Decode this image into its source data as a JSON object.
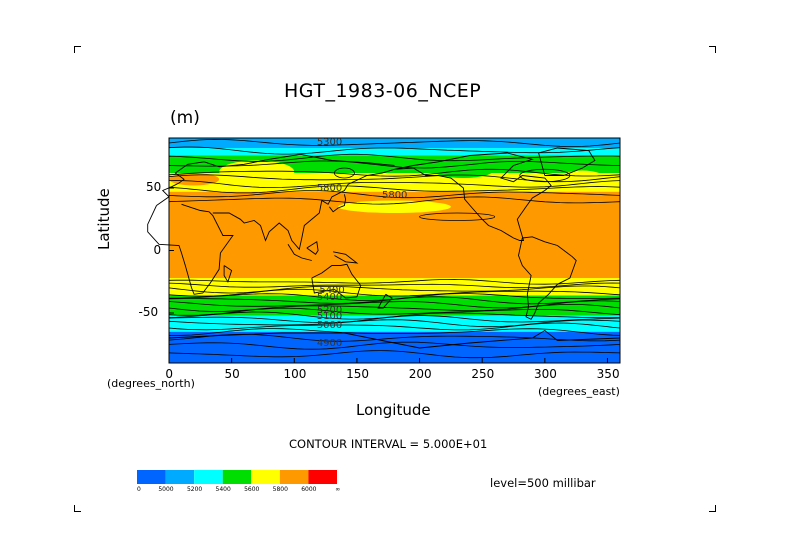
{
  "chart_data": {
    "type": "heatmap",
    "title": "HGT_1983-06_NCEP",
    "units": "(m)",
    "xlabel": "Longitude",
    "ylabel": "Latitude",
    "x_unit_label": "(degrees_east)",
    "y_unit_label": "(degrees_north)",
    "xlim": [
      0,
      360
    ],
    "ylim": [
      -90,
      90
    ],
    "x_ticks": [
      "0",
      "50",
      "100",
      "150",
      "200",
      "250",
      "300",
      "350"
    ],
    "y_ticks": [
      "50",
      "0",
      "-50"
    ],
    "contour_interval_text": "CONTOUR INTERVAL = 5.000E+01",
    "level_text": "level=500 millibar",
    "contour_labels": [
      "5300",
      "5800",
      "5800",
      "5400",
      "5400",
      "5200",
      "5100",
      "5000",
      "4900"
    ],
    "legend": {
      "labels": [
        "0",
        "5000",
        "5200",
        "5400",
        "5600",
        "5800",
        "6000",
        "∞"
      ],
      "colors": [
        "#0064ff",
        "#00aaff",
        "#00ffff",
        "#00dd00",
        "#ffff00",
        "#ff9900",
        "#ff0000"
      ]
    },
    "bands": [
      {
        "lat_from": 90,
        "lat_to": 82,
        "color_index": 1
      },
      {
        "lat_from": 82,
        "lat_to": 76,
        "color_index": 2
      },
      {
        "lat_from": 76,
        "lat_to": 62,
        "color_index": 3
      },
      {
        "lat_from": 62,
        "lat_to": 47,
        "color_index": 4
      },
      {
        "lat_from": 47,
        "lat_to": -22,
        "color_index": 5
      },
      {
        "lat_from": -22,
        "lat_to": -36,
        "color_index": 4
      },
      {
        "lat_from": -36,
        "lat_to": -52,
        "color_index": 3
      },
      {
        "lat_from": -52,
        "lat_to": -65,
        "color_index": 2
      },
      {
        "lat_from": -65,
        "lat_to": -90,
        "color_index": 0
      }
    ]
  }
}
